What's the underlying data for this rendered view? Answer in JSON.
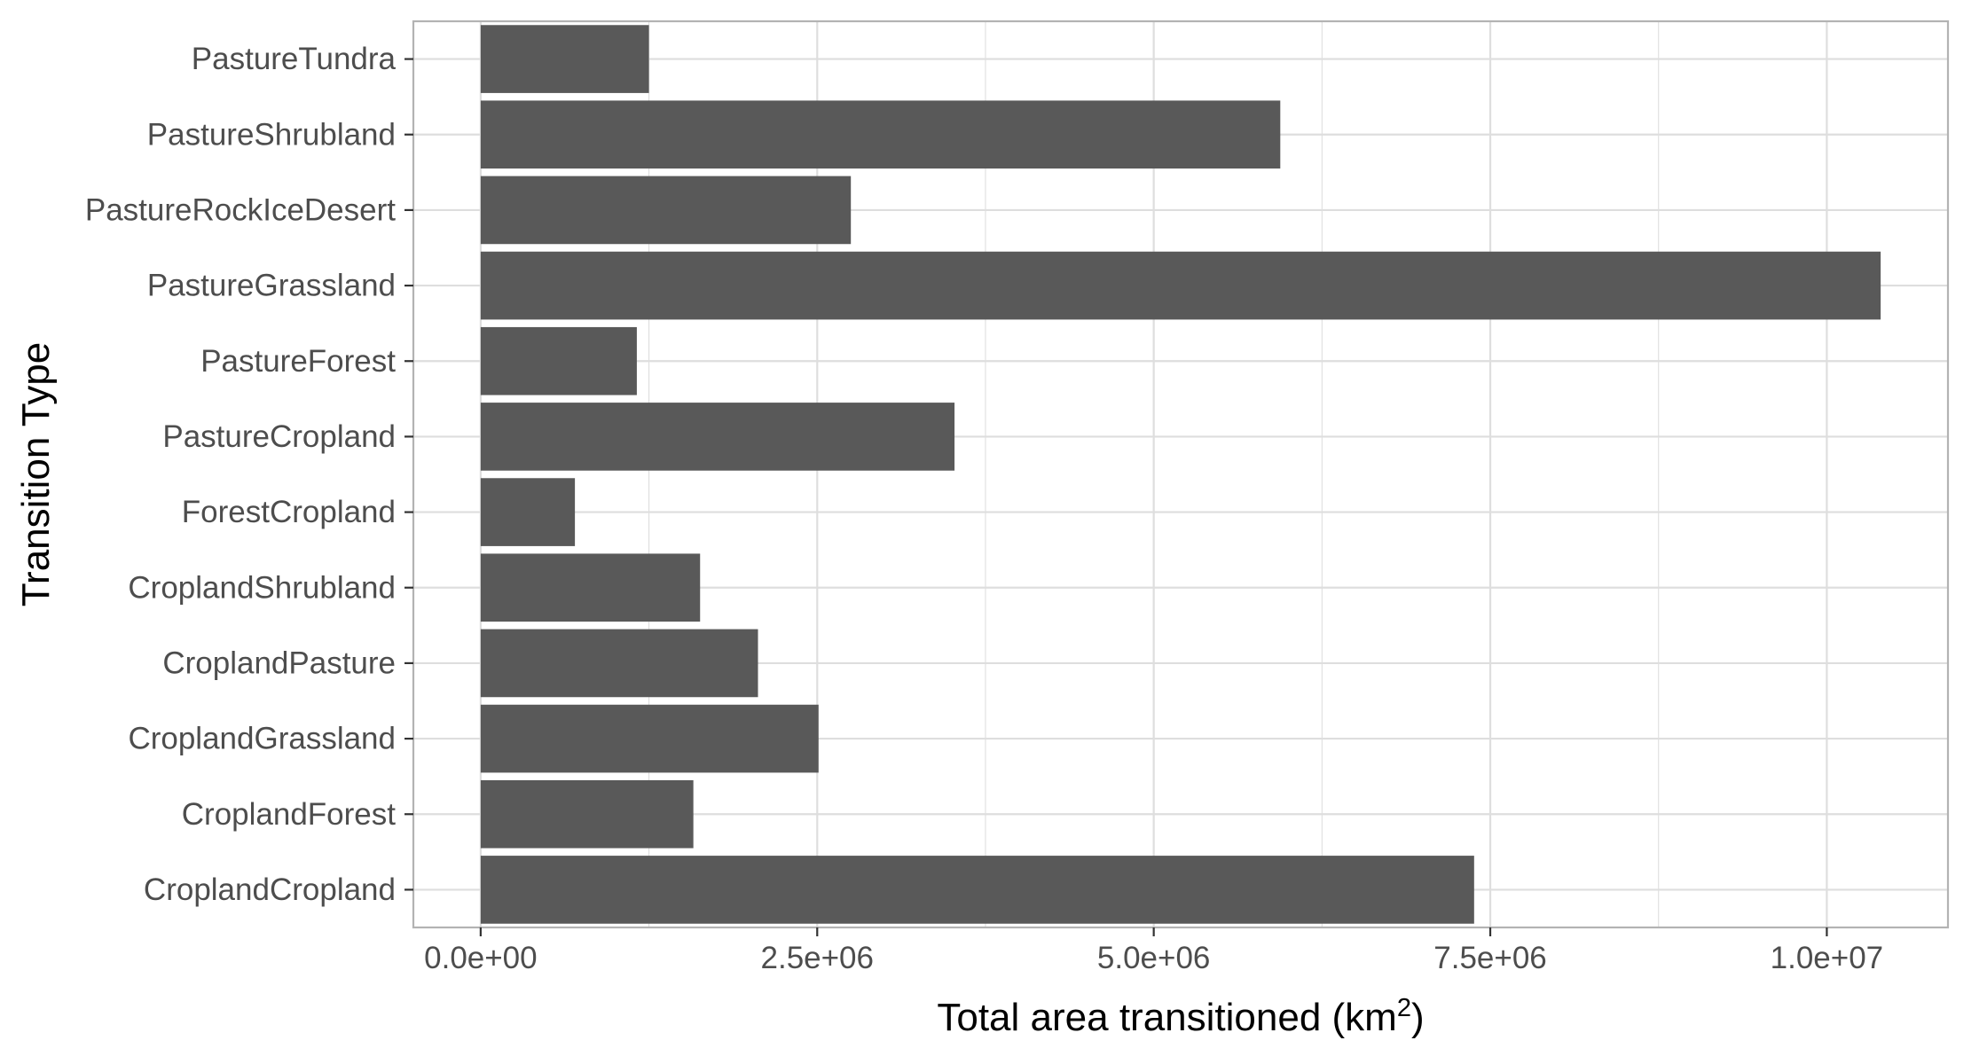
{
  "chart_data": {
    "type": "bar",
    "orientation": "horizontal",
    "categories": [
      "CroplandCropland",
      "CroplandForest",
      "CroplandGrassland",
      "CroplandPasture",
      "CroplandShrubland",
      "ForestCropland",
      "PastureCropland",
      "PastureForest",
      "PastureGrassland",
      "PastureRockIceDesert",
      "PastureShrubland",
      "PastureTundra"
    ],
    "values": [
      7380000,
      1580000,
      2510000,
      2060000,
      1630000,
      700000,
      3520000,
      1160000,
      10400000,
      2750000,
      5940000,
      1250000
    ],
    "xlabel": "Total area transitioned (km",
    "xlabel_superscript": "2",
    "xlabel_suffix": ")",
    "ylabel": "Transition Type",
    "xlim": [
      -500000,
      10900000
    ],
    "xticks": [
      0,
      2500000,
      5000000,
      7500000,
      10000000
    ],
    "xtick_labels": [
      "0.0e+00",
      "2.5e+06",
      "5.0e+06",
      "7.5e+06",
      "1.0e+07"
    ],
    "grid": true,
    "legend": "none",
    "colors": {
      "bar": "#595959",
      "grid": "#dedede",
      "panel_border": "#b3b3b3",
      "tick_text": "#4d4d4d",
      "title_text": "#000000"
    }
  }
}
